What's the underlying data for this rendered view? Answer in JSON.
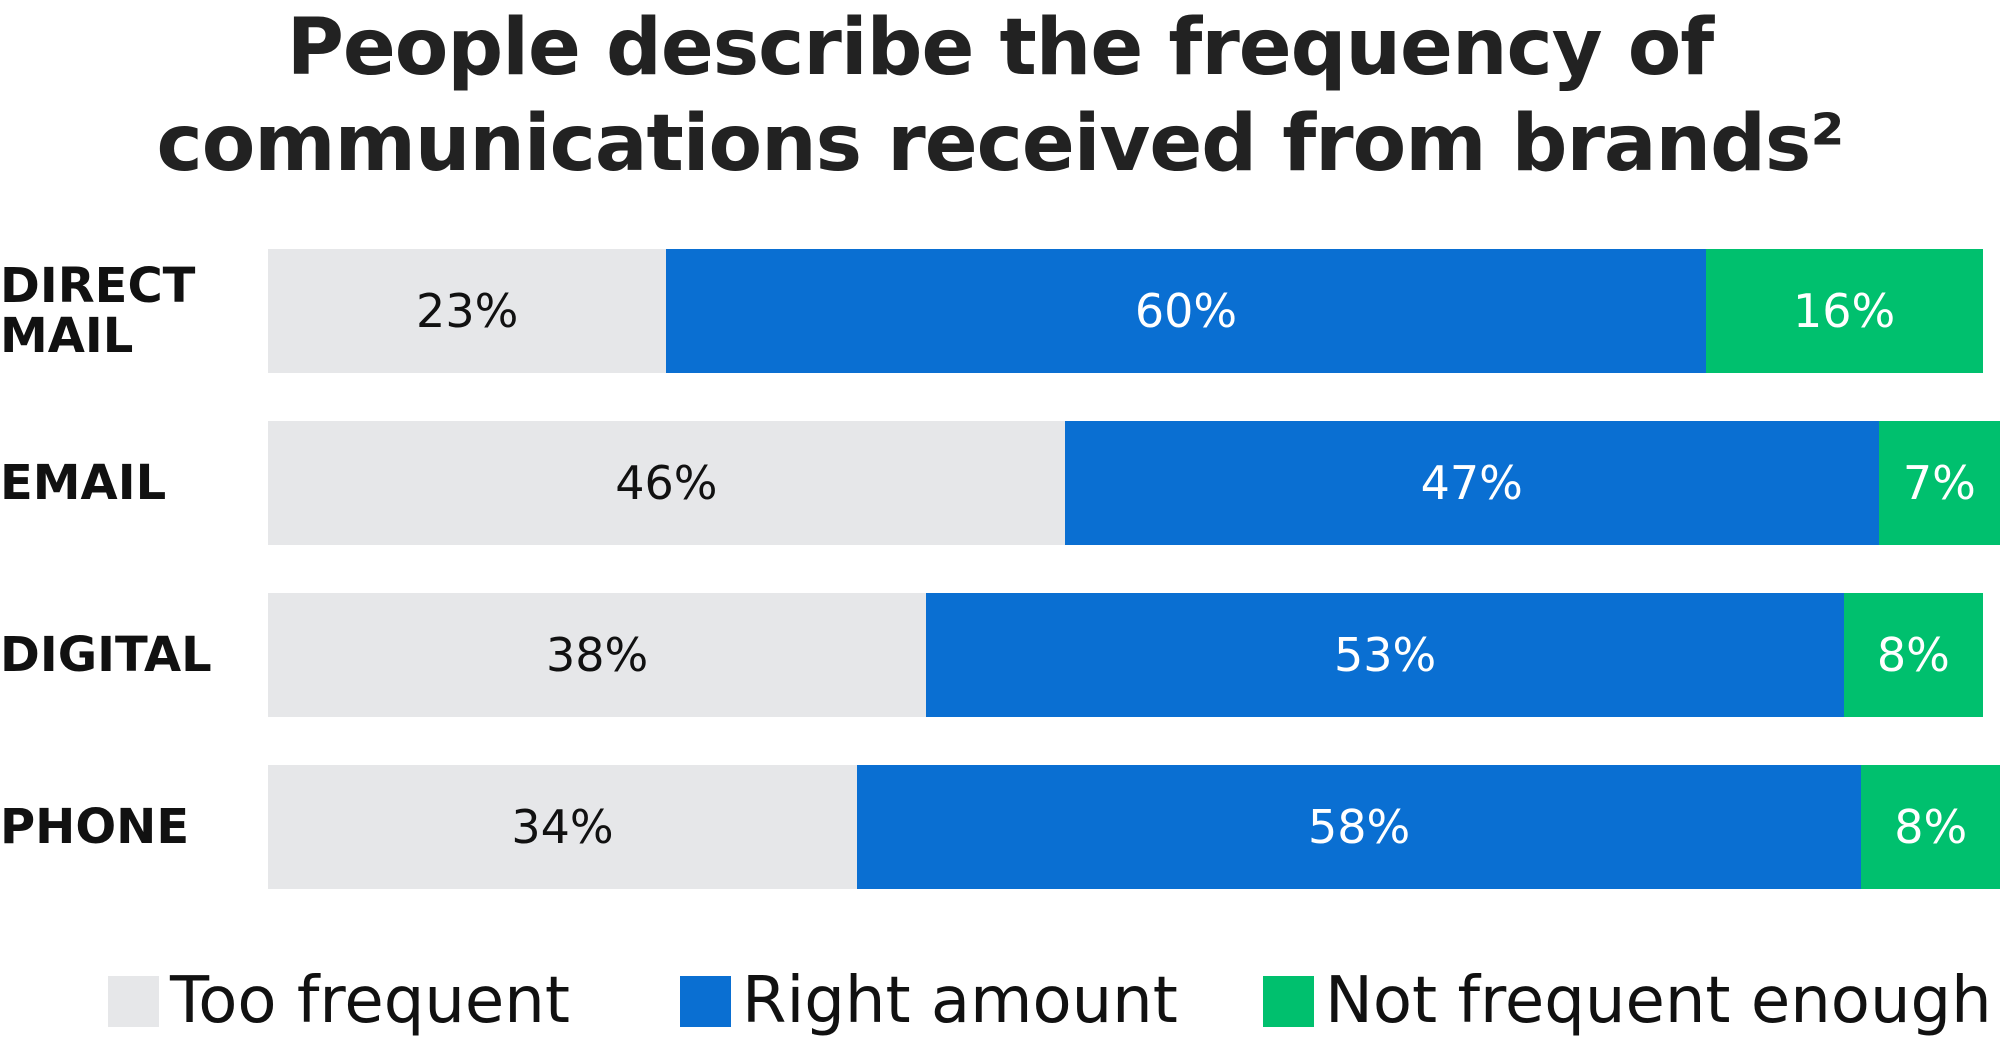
{
  "chart_data": {
    "type": "bar",
    "orientation": "horizontal",
    "stacked": true,
    "title": "People describe the frequency of communications received from brands²",
    "categories": [
      "DIRECT MAIL",
      "EMAIL",
      "DIGITAL",
      "PHONE"
    ],
    "xlim": [
      0,
      100
    ],
    "series": [
      {
        "name": "Too frequent",
        "color": "#e6e7e9",
        "label_color": "#111111",
        "values": [
          23,
          46,
          38,
          34
        ],
        "value_labels": [
          "23%",
          "46%",
          "38%",
          "34%"
        ]
      },
      {
        "name": "Right amount",
        "color": "#0a6fd2",
        "label_color": "#ffffff",
        "values": [
          60,
          47,
          53,
          58
        ],
        "value_labels": [
          "60%",
          "47%",
          "53%",
          "58%"
        ]
      },
      {
        "name": "Not frequent enough",
        "color": "#00c06e",
        "label_color": "#ffffff",
        "values": [
          16,
          7,
          8,
          8
        ],
        "value_labels": [
          "16%",
          "7%",
          "8%",
          "8%"
        ]
      }
    ],
    "legend": "bottom"
  }
}
